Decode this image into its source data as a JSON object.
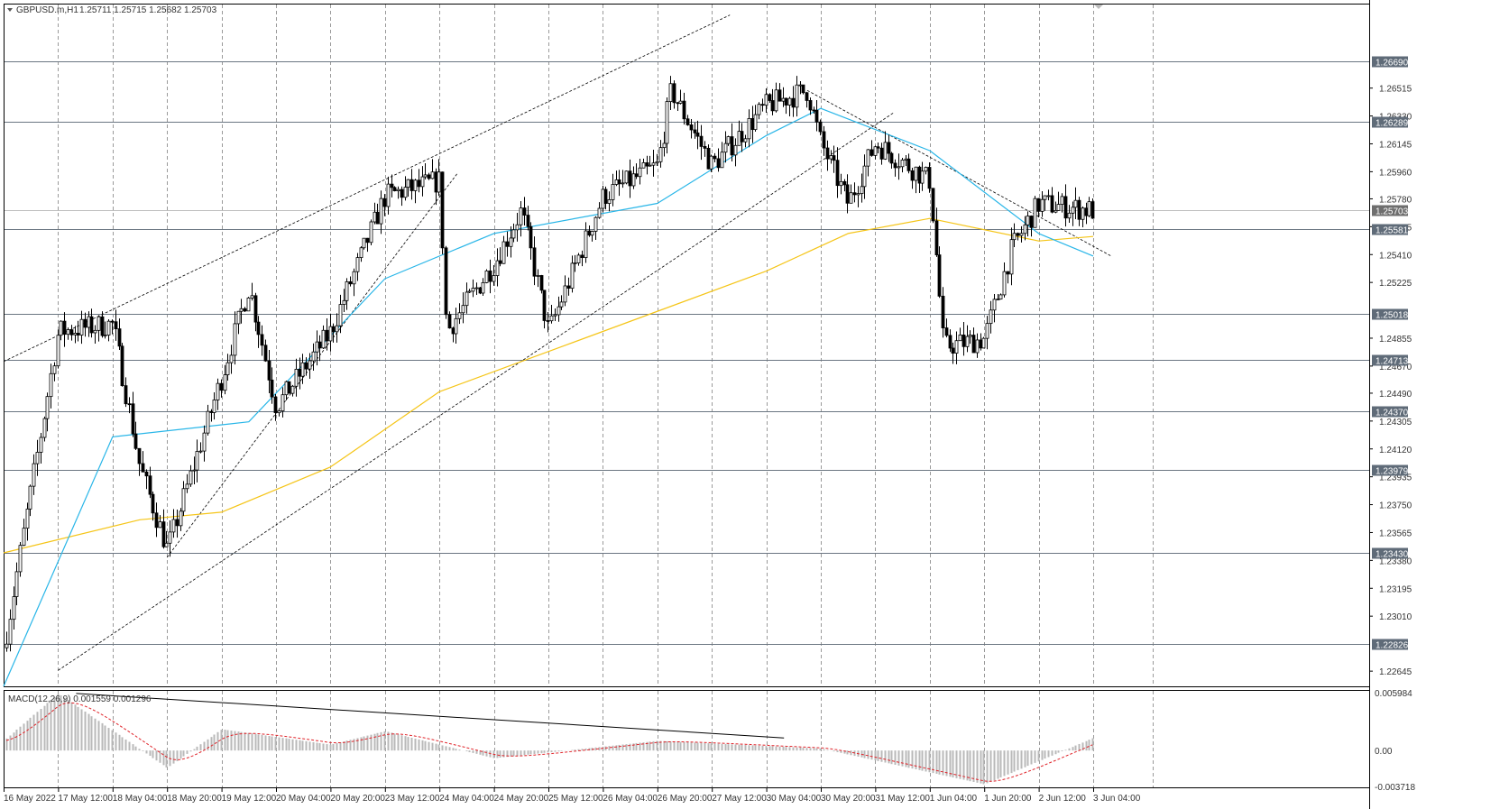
{
  "header": {
    "symbol": "GBPUSD.m,H1",
    "ohlc": "1.25711 1.25715 1.25682 1.25703"
  },
  "macd_header": {
    "label": "MACD(12,26,9) 0.001559 0.001296"
  },
  "colors": {
    "candle": "#000000",
    "grid": "#9a9a9a",
    "ma_fast": "#29b6e8",
    "ma_slow": "#f5c518",
    "hline": "#6b7682",
    "hline_label_bg": "#5f6b78",
    "current_price_bg": "#6e6e6e",
    "macd_hist": "#b9b9b9",
    "macd_signal": "#e0242a"
  },
  "price_axis": {
    "ticks": [
      "1.26515",
      "1.26330",
      "1.26145",
      "1.25960",
      "1.25780",
      "1.25595",
      "1.25410",
      "1.25225",
      "1.24855",
      "1.24670",
      "1.24490",
      "1.24305",
      "1.24120",
      "1.23935",
      "1.23750",
      "1.23565",
      "1.23380",
      "1.23195",
      "1.23010",
      "1.22645"
    ]
  },
  "macd_axis": {
    "ticks": [
      "0.005984",
      "0.00",
      "-0.003718"
    ]
  },
  "time_axis": {
    "labels": [
      "16 May 2022",
      "17 May 12:00",
      "18 May 04:00",
      "18 May 20:00",
      "19 May 12:00",
      "20 May 04:00",
      "20 May 20:00",
      "23 May 12:00",
      "24 May 04:00",
      "24 May 20:00",
      "25 May 12:00",
      "26 May 04:00",
      "26 May 20:00",
      "27 May 12:00",
      "30 May 04:00",
      "30 May 20:00",
      "31 May 12:00",
      "1 Jun 04:00",
      "1 Jun 20:00",
      "2 Jun 12:00",
      "3 Jun 04:00"
    ]
  },
  "levels": [
    {
      "label": "1.26690",
      "price": 1.2669
    },
    {
      "label": "1.26289",
      "price": 1.26289
    },
    {
      "label": "1.25581",
      "price": 1.25581
    },
    {
      "label": "1.25018",
      "price": 1.25018
    },
    {
      "label": "1.24713",
      "price": 1.24713
    },
    {
      "label": "1.24370",
      "price": 1.2437
    },
    {
      "label": "1.23979",
      "price": 1.23979
    },
    {
      "label": "1.23430",
      "price": 1.2343
    },
    {
      "label": "1.22826",
      "price": 1.22826
    }
  ],
  "current_price": {
    "label": "1.25703",
    "price": 1.25703
  },
  "chart_data": {
    "type": "candlestick",
    "symbol": "GBPUSD.m",
    "timeframe": "H1",
    "y_range": [
      1.2258,
      1.2698
    ],
    "key_points": [
      {
        "time": "16 May 2022",
        "price": 1.228
      },
      {
        "time": "17 May 12:00",
        "price": 1.249
      },
      {
        "time": "18 May 04:00",
        "price": 1.2495
      },
      {
        "time": "18 May 12:00",
        "price": 1.24
      },
      {
        "time": "18 May 20:00",
        "price": 1.2345
      },
      {
        "time": "19 May 12:00",
        "price": 1.246
      },
      {
        "time": "19 May 20:00",
        "price": 1.252
      },
      {
        "time": "20 May 04:00",
        "price": 1.244
      },
      {
        "time": "20 May 20:00",
        "price": 1.249
      },
      {
        "time": "23 May 04:00",
        "price": 1.257
      },
      {
        "time": "23 May 12:00",
        "price": 1.258
      },
      {
        "time": "24 May 04:00",
        "price": 1.259
      },
      {
        "time": "24 May 06:00",
        "price": 1.249
      },
      {
        "time": "24 May 20:00",
        "price": 1.2535
      },
      {
        "time": "25 May 12:00",
        "price": 1.249
      },
      {
        "time": "26 May 04:00",
        "price": 1.258
      },
      {
        "time": "26 May 20:00",
        "price": 1.26
      },
      {
        "time": "27 May 00:00",
        "price": 1.265
      },
      {
        "time": "27 May 12:00",
        "price": 1.26
      },
      {
        "time": "30 May 04:00",
        "price": 1.264
      },
      {
        "time": "30 May 16:00",
        "price": 1.265
      },
      {
        "time": "30 May 20:00",
        "price": 1.2615
      },
      {
        "time": "31 May 04:00",
        "price": 1.2575
      },
      {
        "time": "31 May 12:00",
        "price": 1.2615
      },
      {
        "time": "1 Jun 04:00",
        "price": 1.259
      },
      {
        "time": "1 Jun 08:00",
        "price": 1.248
      },
      {
        "time": "1 Jun 20:00",
        "price": 1.2485
      },
      {
        "time": "2 Jun 04:00",
        "price": 1.2545
      },
      {
        "time": "2 Jun 12:00",
        "price": 1.2575
      },
      {
        "time": "3 Jun 04:00",
        "price": 1.25703
      }
    ],
    "ma_fast_points": [
      {
        "time": "16 May 2022",
        "price": 1.22
      },
      {
        "time": "18 May 04:00",
        "price": 1.242
      },
      {
        "time": "19 May 20:00",
        "price": 1.243
      },
      {
        "time": "23 May 12:00",
        "price": 1.2525
      },
      {
        "time": "24 May 20:00",
        "price": 1.2555
      },
      {
        "time": "26 May 20:00",
        "price": 1.2575
      },
      {
        "time": "30 May 04:00",
        "price": 1.262
      },
      {
        "time": "30 May 20:00",
        "price": 1.2638
      },
      {
        "time": "1 Jun 04:00",
        "price": 1.261
      },
      {
        "time": "2 Jun 12:00",
        "price": 1.2555
      },
      {
        "time": "3 Jun 04:00",
        "price": 1.254
      }
    ],
    "ma_slow_points": [
      {
        "time": "16 May 2022",
        "price": 1.2343
      },
      {
        "time": "18 May 12:00",
        "price": 1.2365
      },
      {
        "time": "19 May 12:00",
        "price": 1.237
      },
      {
        "time": "20 May 20:00",
        "price": 1.24
      },
      {
        "time": "24 May 04:00",
        "price": 1.245
      },
      {
        "time": "26 May 04:00",
        "price": 1.249
      },
      {
        "time": "30 May 04:00",
        "price": 1.253
      },
      {
        "time": "31 May 04:00",
        "price": 1.2555
      },
      {
        "time": "1 Jun 04:00",
        "price": 1.2565
      },
      {
        "time": "2 Jun 12:00",
        "price": 1.255
      },
      {
        "time": "3 Jun 04:00",
        "price": 1.2553
      }
    ],
    "macd_histogram_points": [
      {
        "time": "16 May 2022",
        "value": 0.001
      },
      {
        "time": "17 May 12:00",
        "value": 0.0059
      },
      {
        "time": "18 May 20:00",
        "value": -0.0018
      },
      {
        "time": "19 May 12:00",
        "value": 0.0022
      },
      {
        "time": "20 May 20:00",
        "value": 0.0006
      },
      {
        "time": "23 May 12:00",
        "value": 0.002
      },
      {
        "time": "24 May 20:00",
        "value": -0.0008
      },
      {
        "time": "26 May 20:00",
        "value": 0.001
      },
      {
        "time": "30 May 20:00",
        "value": 0.0002
      },
      {
        "time": "1 Jun 20:00",
        "value": -0.0035
      },
      {
        "time": "3 Jun 04:00",
        "value": 0.0013
      }
    ]
  }
}
